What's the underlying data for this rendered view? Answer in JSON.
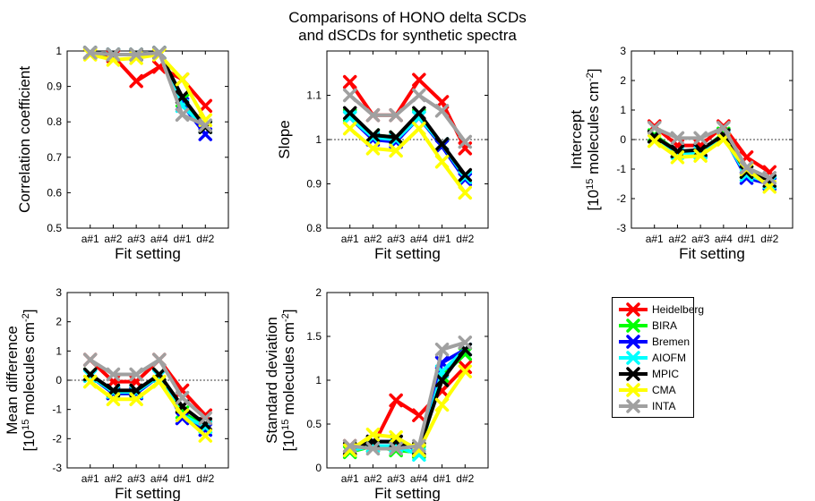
{
  "figure_title": [
    "Comparisons of HONO delta SCDs",
    "and dSCDs for synthetic spectra"
  ],
  "series_colors": {
    "Heidelberg": "#ff0000",
    "BIRA": "#00ff00",
    "Bremen": "#0000ff",
    "AIOFM": "#00ffff",
    "MPIC": "#000000",
    "CMA": "#ffff00",
    "INTA": "#a0a0a0"
  },
  "legend": [
    "Heidelberg",
    "BIRA",
    "Bremen",
    "AIOFM",
    "MPIC",
    "CMA",
    "INTA"
  ],
  "chart_data": [
    {
      "type": "line",
      "id": "correlation",
      "xlabel": "Fit setting",
      "ylabel": [
        "Correlation coefficient"
      ],
      "categories": [
        "a#1",
        "a#2",
        "a#3",
        "a#4",
        "d#1",
        "d#2"
      ],
      "ylim": [
        0.5,
        1
      ],
      "yticks": [
        "0.5",
        "0.6",
        "0.7",
        "0.8",
        "0.9",
        "1"
      ],
      "yticks_values": [
        0.5,
        0.6,
        0.7,
        0.8,
        0.9,
        1.0
      ],
      "reference_line": null,
      "series": [
        {
          "name": "Heidelberg",
          "values": [
            0.995,
            0.985,
            0.915,
            0.955,
            0.92,
            0.845
          ]
        },
        {
          "name": "BIRA",
          "values": [
            0.995,
            0.99,
            0.99,
            0.995,
            0.86,
            0.785
          ]
        },
        {
          "name": "Bremen",
          "values": [
            0.995,
            0.99,
            0.99,
            0.995,
            0.85,
            0.765
          ]
        },
        {
          "name": "AIOFM",
          "values": [
            0.995,
            0.99,
            0.99,
            0.995,
            0.845,
            0.785
          ]
        },
        {
          "name": "MPIC",
          "values": [
            0.995,
            0.99,
            0.99,
            0.995,
            0.87,
            0.785
          ]
        },
        {
          "name": "CMA",
          "values": [
            0.99,
            0.975,
            0.98,
            0.99,
            0.92,
            0.805
          ]
        },
        {
          "name": "INTA",
          "values": [
            0.995,
            0.99,
            0.99,
            0.995,
            0.82,
            0.79
          ]
        }
      ]
    },
    {
      "type": "line",
      "id": "slope",
      "xlabel": "Fit setting",
      "ylabel": [
        "Slope"
      ],
      "categories": [
        "a#1",
        "a#2",
        "a#3",
        "a#4",
        "d#1",
        "d#2"
      ],
      "ylim": [
        0.8,
        1.2
      ],
      "yticks": [
        "0.8",
        "0.9",
        "1",
        "1.1"
      ],
      "yticks_values": [
        0.8,
        0.9,
        1.0,
        1.1
      ],
      "reference_line": 1.0,
      "series": [
        {
          "name": "Heidelberg",
          "values": [
            1.13,
            1.055,
            1.055,
            1.135,
            1.085,
            0.98
          ]
        },
        {
          "name": "BIRA",
          "values": [
            1.055,
            1.01,
            1.005,
            1.055,
            0.985,
            0.915
          ]
        },
        {
          "name": "Bremen",
          "values": [
            1.05,
            1.0,
            0.995,
            1.05,
            0.985,
            0.91
          ]
        },
        {
          "name": "AIOFM",
          "values": [
            1.05,
            1.005,
            1.0,
            1.05,
            0.99,
            0.915
          ]
        },
        {
          "name": "MPIC",
          "values": [
            1.06,
            1.01,
            1.005,
            1.06,
            0.99,
            0.92
          ]
        },
        {
          "name": "CMA",
          "values": [
            1.025,
            0.98,
            0.975,
            1.025,
            0.95,
            0.88
          ]
        },
        {
          "name": "INTA",
          "values": [
            1.1,
            1.055,
            1.055,
            1.1,
            1.065,
            0.995
          ]
        }
      ]
    },
    {
      "type": "line",
      "id": "intercept",
      "xlabel": "Fit setting",
      "ylabel": [
        "Intercept",
        "[10^15 molecules cm^-2]"
      ],
      "categories": [
        "a#1",
        "a#2",
        "a#3",
        "a#4",
        "d#1",
        "d#2"
      ],
      "ylim": [
        -3,
        3
      ],
      "yticks": [
        "-3",
        "-2",
        "-1",
        "0",
        "1",
        "2",
        "3"
      ],
      "yticks_values": [
        -3,
        -2,
        -1,
        0,
        1,
        2,
        3
      ],
      "reference_line": 0,
      "series": [
        {
          "name": "Heidelberg",
          "values": [
            0.45,
            -0.2,
            -0.2,
            0.45,
            -0.6,
            -1.1
          ]
        },
        {
          "name": "BIRA",
          "values": [
            0.15,
            -0.4,
            -0.4,
            0.2,
            -1.1,
            -1.45
          ]
        },
        {
          "name": "Bremen",
          "values": [
            0.1,
            -0.4,
            -0.4,
            0.15,
            -1.3,
            -1.5
          ]
        },
        {
          "name": "AIOFM",
          "values": [
            0.1,
            -0.45,
            -0.45,
            0.1,
            -1.2,
            -1.45
          ]
        },
        {
          "name": "MPIC",
          "values": [
            0.1,
            -0.4,
            -0.35,
            0.15,
            -1.1,
            -1.4
          ]
        },
        {
          "name": "CMA",
          "values": [
            -0.05,
            -0.6,
            -0.55,
            0.0,
            -1.0,
            -1.6
          ]
        },
        {
          "name": "INTA",
          "values": [
            0.4,
            0.05,
            0.05,
            0.4,
            -0.95,
            -1.3
          ]
        }
      ]
    },
    {
      "type": "line",
      "id": "mean-difference",
      "xlabel": "Fit setting",
      "ylabel": [
        "Mean difference",
        "[10^15 molecules cm^-2]"
      ],
      "categories": [
        "a#1",
        "a#2",
        "a#3",
        "a#4",
        "d#1",
        "d#2"
      ],
      "ylim": [
        -3,
        3
      ],
      "yticks": [
        "-3",
        "-2",
        "-1",
        "0",
        "1",
        "2",
        "3"
      ],
      "yticks_values": [
        -3,
        -2,
        -1,
        0,
        1,
        2,
        3
      ],
      "reference_line": 0,
      "series": [
        {
          "name": "Heidelberg",
          "values": [
            0.7,
            -0.05,
            -0.05,
            0.7,
            -0.35,
            -1.2
          ]
        },
        {
          "name": "BIRA",
          "values": [
            0.2,
            -0.45,
            -0.45,
            0.2,
            -1.1,
            -1.6
          ]
        },
        {
          "name": "Bremen",
          "values": [
            0.15,
            -0.45,
            -0.45,
            0.15,
            -1.3,
            -1.7
          ]
        },
        {
          "name": "AIOFM",
          "values": [
            0.15,
            -0.4,
            -0.4,
            0.15,
            -1.2,
            -1.6
          ]
        },
        {
          "name": "MPIC",
          "values": [
            0.2,
            -0.35,
            -0.35,
            0.2,
            -0.9,
            -1.5
          ]
        },
        {
          "name": "CMA",
          "values": [
            -0.05,
            -0.65,
            -0.65,
            -0.05,
            -1.2,
            -1.9
          ]
        },
        {
          "name": "INTA",
          "values": [
            0.7,
            0.2,
            0.2,
            0.7,
            -0.6,
            -1.3
          ]
        }
      ]
    },
    {
      "type": "line",
      "id": "standard-deviation",
      "xlabel": "Fit setting",
      "ylabel": [
        "Standard deviation",
        "[10^15 molecules cm^-2]"
      ],
      "categories": [
        "a#1",
        "a#2",
        "a#3",
        "a#4",
        "d#1",
        "d#2"
      ],
      "ylim": [
        0,
        2
      ],
      "yticks": [
        "0",
        "0.5",
        "1",
        "1.5",
        "2"
      ],
      "yticks_values": [
        0,
        0.5,
        1.0,
        1.5,
        2.0
      ],
      "reference_line": null,
      "series": [
        {
          "name": "Heidelberg",
          "values": [
            0.25,
            0.25,
            0.77,
            0.6,
            0.88,
            1.15
          ]
        },
        {
          "name": "BIRA",
          "values": [
            0.18,
            0.25,
            0.2,
            0.18,
            1.05,
            1.3
          ]
        },
        {
          "name": "Bremen",
          "values": [
            0.2,
            0.3,
            0.3,
            0.2,
            1.2,
            1.35
          ]
        },
        {
          "name": "AIOFM",
          "values": [
            0.2,
            0.25,
            0.25,
            0.15,
            1.1,
            1.35
          ]
        },
        {
          "name": "MPIC",
          "values": [
            0.22,
            0.3,
            0.3,
            0.22,
            1.0,
            1.35
          ]
        },
        {
          "name": "CMA",
          "values": [
            0.2,
            0.38,
            0.35,
            0.2,
            0.72,
            1.1
          ]
        },
        {
          "name": "INTA",
          "values": [
            0.25,
            0.22,
            0.22,
            0.25,
            1.35,
            1.43
          ]
        }
      ]
    }
  ]
}
